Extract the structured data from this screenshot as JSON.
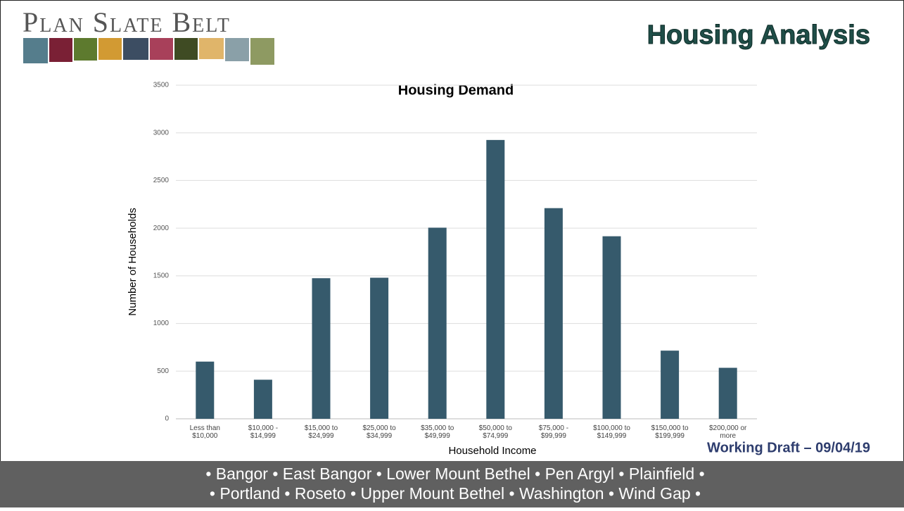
{
  "logo": "Plan Slate Belt",
  "heading": "Housing Analysis",
  "draft": "Working Draft – 09/04/19",
  "footer": [
    "• Bangor • East Bangor • Lower Mount Bethel • Pen Argyl • Plainfield •",
    "• Portland • Roseto • Upper Mount Bethel • Washington • Wind Gap •"
  ],
  "chart_data": {
    "type": "bar",
    "title": "Housing Demand",
    "x_label": "Household Income",
    "y_label": "Number of Households",
    "categories": [
      "Less than\n$10,000",
      "$10,000 -\n$14,999",
      "$15,000 to\n$24,999",
      "$25,000 to\n$34,999",
      "$35,000 to\n$49,999",
      "$50,000 to\n$74,999",
      "$75,000 -\n$99,999",
      "$100,000 to\n$149,999",
      "$150,000 to\n$199,999",
      "$200,000 or\nmore"
    ],
    "values": [
      600,
      410,
      1475,
      1480,
      2005,
      2925,
      2210,
      1915,
      715,
      535
    ],
    "color": "#365a6c",
    "ylim": [
      0,
      3500
    ],
    "yticks": [
      0,
      500,
      1000,
      1500,
      2000,
      2500,
      3000,
      3500
    ],
    "grid": true
  }
}
